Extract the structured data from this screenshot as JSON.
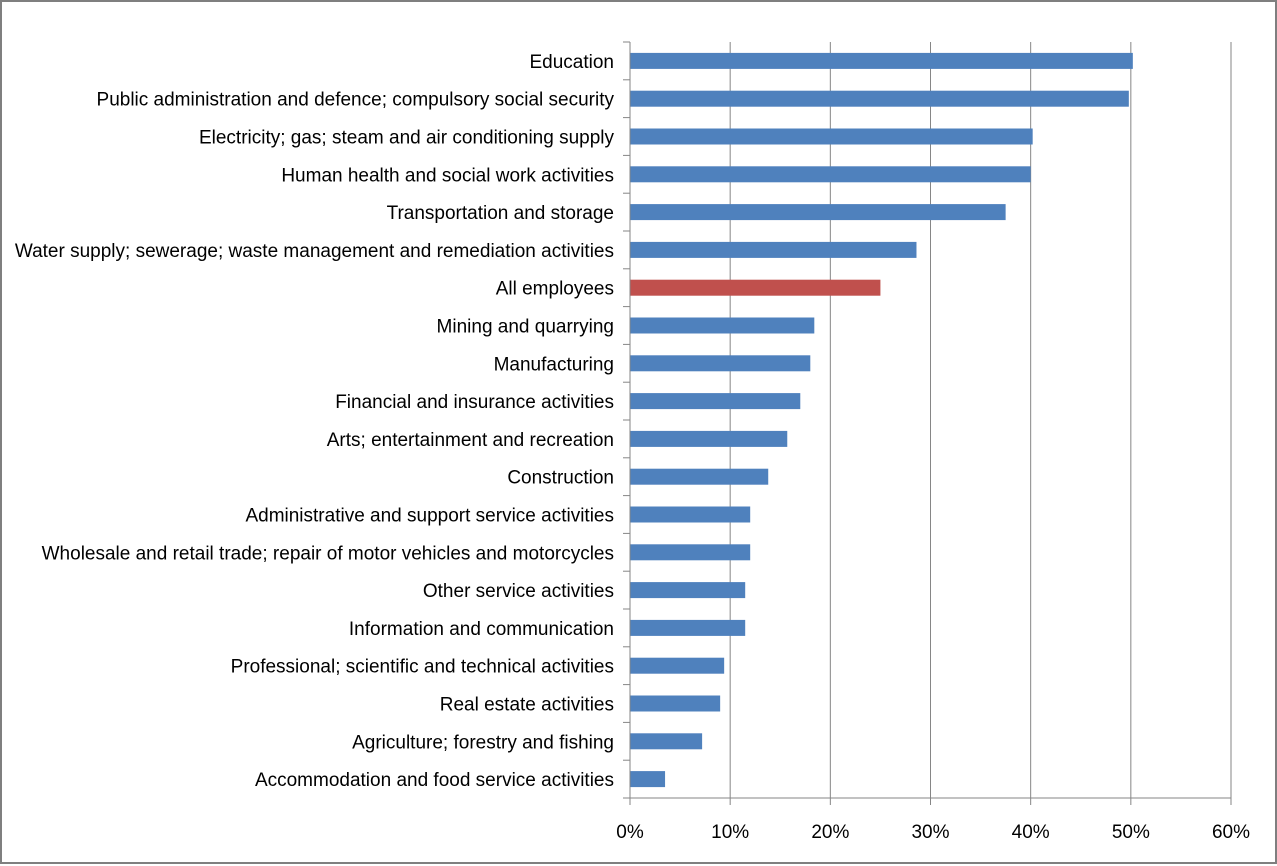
{
  "chart_data": {
    "type": "bar",
    "orientation": "horizontal",
    "title": "",
    "xlabel": "",
    "ylabel": "",
    "xlim": [
      0,
      0.6
    ],
    "x_ticks": [
      "0%",
      "10%",
      "20%",
      "30%",
      "40%",
      "50%",
      "60%"
    ],
    "grid": "vertical",
    "legend": "none",
    "categories": [
      "Education",
      "Public administration and defence; compulsory social security",
      "Electricity; gas; steam and air conditioning supply",
      "Human health and social work activities",
      "Transportation and storage",
      "Water supply; sewerage; waste management and remediation activities",
      "All employees",
      "Mining and quarrying",
      "Manufacturing",
      "Financial and insurance activities",
      "Arts; entertainment and recreation",
      "Construction",
      "Administrative and support service activities",
      "Wholesale and retail trade; repair of motor vehicles and motorcycles",
      "Other service activities",
      "Information and communication",
      "Professional; scientific and technical activities",
      "Real estate activities",
      "Agriculture; forestry and fishing",
      "Accommodation and food service activities"
    ],
    "values": [
      0.502,
      0.498,
      0.402,
      0.4,
      0.375,
      0.286,
      0.25,
      0.184,
      0.18,
      0.17,
      0.157,
      0.138,
      0.12,
      0.12,
      0.115,
      0.115,
      0.094,
      0.09,
      0.072,
      0.035
    ],
    "colors": {
      "default": "#4f81bd",
      "highlight": "#c0504d",
      "highlight_category": "All employees",
      "gridline": "#868686",
      "axis": "#868686",
      "frame": "#7f7f7f"
    }
  }
}
